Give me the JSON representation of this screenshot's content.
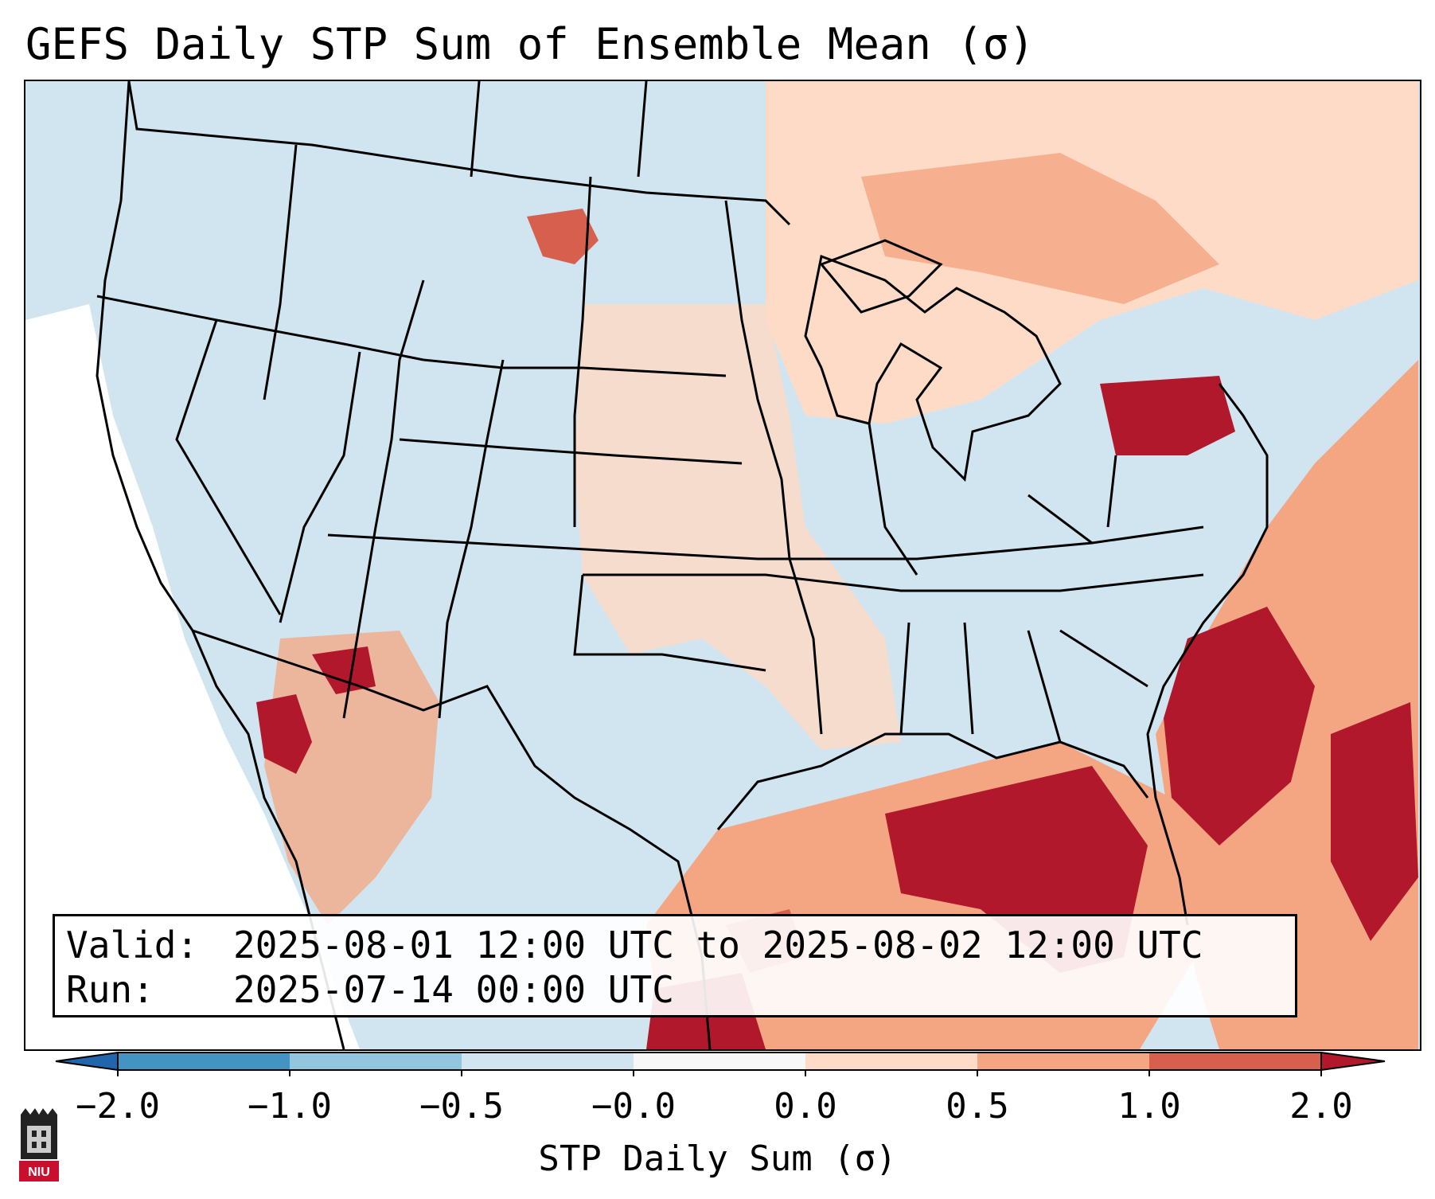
{
  "title": "GEFS Daily STP Sum of Ensemble Mean (σ)",
  "info": {
    "valid_key": "Valid:",
    "valid_value": "2025-08-01 12:00 UTC to 2025-08-02 12:00 UTC",
    "run_key": "Run:",
    "run_value": "2025-07-14 00:00 UTC"
  },
  "colorbar": {
    "label": "STP Daily Sum (σ)",
    "ticks": [
      "−2.0",
      "−1.0",
      "−0.5",
      "−0.0",
      "0.0",
      "0.5",
      "1.0",
      "2.0"
    ],
    "colors": [
      "#2166ac",
      "#4393c3",
      "#92c5de",
      "#d1e5f0",
      "#f7f7f7",
      "#fddbc7",
      "#f4a582",
      "#d6604d",
      "#b2182b"
    ]
  },
  "logo": {
    "text": "NIU",
    "color": "#c8102e"
  },
  "map": {
    "background": "#d1e5f0",
    "anomaly_regions": [
      {
        "name": "pennsylvania",
        "category": "2.0"
      },
      {
        "name": "southeast-atlantic",
        "category": "2.0"
      },
      {
        "name": "gulf-of-mexico",
        "category": "2.0"
      },
      {
        "name": "baja-gulf-of-california",
        "category": "2.0"
      },
      {
        "name": "western-atlantic",
        "category": "1.0"
      },
      {
        "name": "upper-midwest-great-lakes",
        "category": "0.5"
      },
      {
        "name": "ontario-quebec",
        "category": "0.5"
      },
      {
        "name": "central-plains",
        "category": "0.0"
      },
      {
        "name": "eastern-montana",
        "category": "1.0"
      },
      {
        "name": "arizona-new-mexico",
        "category": "1.0"
      },
      {
        "name": "pacific-offshore",
        "category": "-0.0"
      }
    ]
  }
}
